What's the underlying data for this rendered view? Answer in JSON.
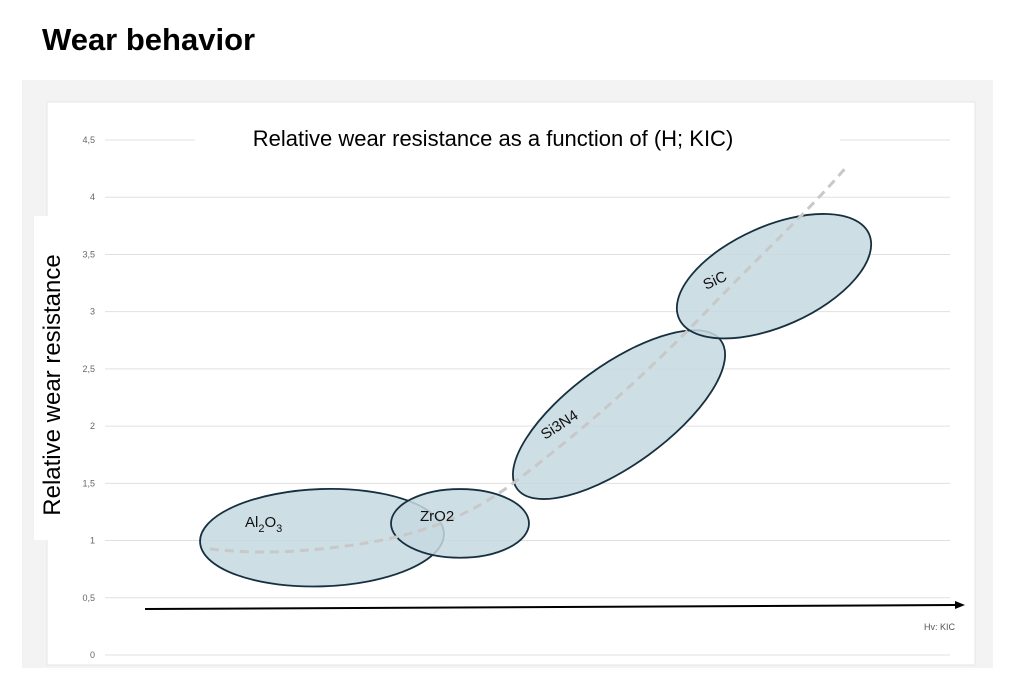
{
  "page": {
    "title": "Wear behavior"
  },
  "chart_data": {
    "type": "diagram",
    "title": "Relative wear resistance as a function of (H; KIC)",
    "ylabel": "Relative wear resistance",
    "xlabel": "Hv: KIC",
    "ylim": [
      0,
      4.5
    ],
    "yticks": [
      "0",
      "0,5",
      "1",
      "1,5",
      "2",
      "2,5",
      "3",
      "3,5",
      "4",
      "4,5"
    ],
    "grid": true,
    "regions": [
      {
        "name": "Al2O3",
        "label_main": "Al",
        "sub1": "2",
        "mid": "O",
        "sub2": "3",
        "y_range": [
          0.6,
          1.45
        ]
      },
      {
        "name": "ZrO2",
        "label": "ZrO2",
        "y_range": [
          0.85,
          1.45
        ]
      },
      {
        "name": "Si3N4",
        "label": "Si3N4",
        "y_range": [
          1.45,
          2.75
        ]
      },
      {
        "name": "SiC",
        "label": "SiC",
        "y_range": [
          2.8,
          3.82
        ]
      }
    ],
    "trend": "dashed curve, increasing",
    "colors": {
      "region_fill": "#c5d8e1",
      "region_stroke": "#17303f",
      "trend": "#c8c8c8",
      "grid": "#e0e0e0"
    }
  }
}
